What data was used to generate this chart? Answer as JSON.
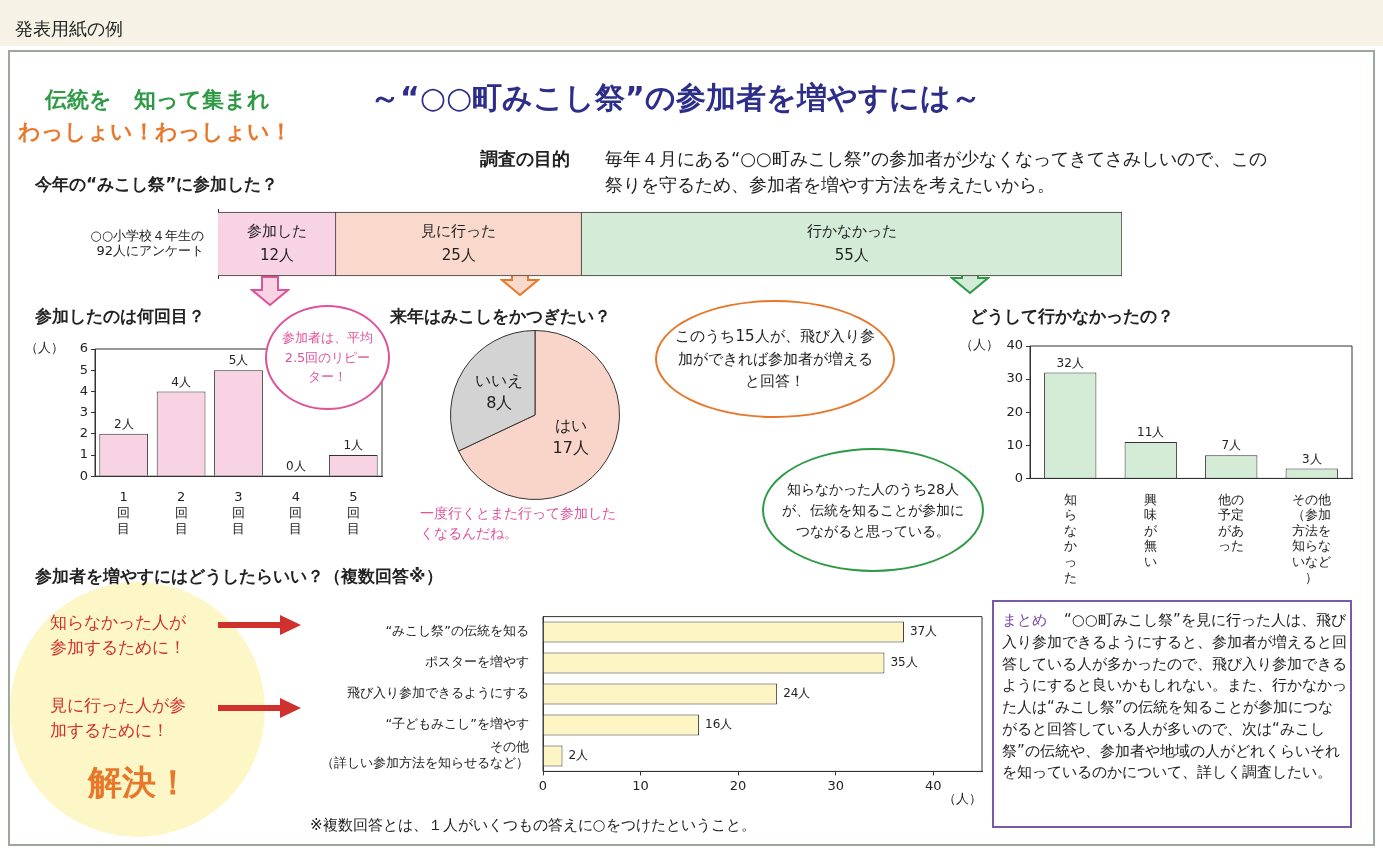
{
  "chart_data": [
    {
      "type": "other",
      "title": "～“○○町みこし祭”の参加者を増やすには～",
      "annotations": [
        "発表用紙の例",
        "伝統を　知って集まれ",
        "わっしょい！わっしょい！",
        "調査の目的",
        "毎年４月にある“○○町みこし祭”の参加者が少なくなってきてさみしいので、この祭りを守るため、参加者を増やす方法を考えたいから。",
        "まとめ",
        "“○○町みこし祭”を見に行った人は、飛び入り参加できるようにすると、参加者が増えると回答している人が多かったので、飛び入り参加できるようにすると良いかもしれない。また、行かなかった人は“みこし祭”の伝統を知ることが参加につながると回答している人が多いので、次は“みこし祭”の伝統や、参加者や地域の人がどれくらいそれを知っているのかについて、詳しく調査したい。"
      ]
    },
    {
      "type": "bar",
      "title": "今年の“みこし祭”に参加した？",
      "orientation": "horizontal",
      "stacked": true,
      "tick_labels": "y",
      "xlim": [
        0,
        92
      ],
      "categories": [
        "○○小学校４年生の92人にアンケート"
      ],
      "series": [
        {
          "name": "参加した",
          "color": "#f8d3e3",
          "values": [
            12
          ],
          "value_labels": [
            "12人"
          ]
        },
        {
          "name": "見に行った",
          "color": "#fad9cd",
          "values": [
            25
          ],
          "value_labels": [
            "25人"
          ]
        },
        {
          "name": "行かなかった",
          "color": "#d4ebd7",
          "values": [
            55
          ],
          "value_labels": [
            "55人"
          ]
        }
      ]
    },
    {
      "type": "bar",
      "title": "参加したのは何回目？",
      "ylabel": "（人）",
      "categories": [
        "1回目",
        "2回目",
        "3回目",
        "4回目",
        "5回目"
      ],
      "values": [
        2,
        4,
        5,
        0,
        1
      ],
      "color": "#f8d3e3",
      "ylim": [
        0,
        6
      ],
      "yticks": [
        0,
        1,
        2,
        3,
        4,
        5,
        6
      ],
      "value_labels": [
        "2人",
        "4人",
        "5人",
        "0人",
        "1人"
      ],
      "annotations": [
        "参加者は、平均2.5回のリピーター！",
        "一度行くとまた行って参加したくなるんだね。"
      ]
    },
    {
      "type": "pie",
      "title": "来年はみこしをかつぎたい？",
      "categories": [
        "はい",
        "いいえ"
      ],
      "values": [
        17,
        8
      ],
      "colors": [
        "#f9d5c9",
        "#d3d3d3"
      ],
      "value_labels": [
        "17人",
        "8人"
      ]
    },
    {
      "type": "bar",
      "title": "どうして行かなかったの？",
      "ylabel": "（人）",
      "categories": [
        "知らなかった",
        "興味が無い",
        "他の予定があった",
        "その他（参加方法を知らないなど）"
      ],
      "values": [
        32,
        11,
        7,
        3
      ],
      "color": "#d4ebd5",
      "ylim": [
        0,
        40
      ],
      "yticks": [
        0,
        10,
        20,
        30,
        40
      ],
      "value_labels": [
        "32人",
        "11人",
        "7人",
        "3人"
      ],
      "annotations": [
        "知らなかった人のうち28人が、伝統を知ることが参加につながると思っている。"
      ]
    },
    {
      "type": "bar",
      "title": "参加者を増やすにはどうしたらいい？（複数回答※）",
      "orientation": "horizontal",
      "xlabel": "（人）",
      "categories": [
        "“みこし祭”の伝統を知る",
        "ポスターを増やす",
        "飛び入り参加できるようにする",
        "“子どもみこし”を増やす",
        "その他（詳しい参加方法を知らせるなど）"
      ],
      "values": [
        37,
        35,
        24,
        16,
        2
      ],
      "color": "#fdf6c4",
      "xlim": [
        0,
        45
      ],
      "xticks": [
        0,
        10,
        20,
        30,
        40
      ],
      "value_labels": [
        "37人",
        "35人",
        "24人",
        "16人",
        "2人"
      ],
      "annotations": [
        "※複数回答とは、１人がいくつもの答えに○をつけたということ。",
        "このうち15人が、飛び入り参加ができれば参加者が増えると回答！",
        "知らなかった人が参加するために！",
        "見に行った人が参加するために！",
        "解決！"
      ]
    }
  ]
}
